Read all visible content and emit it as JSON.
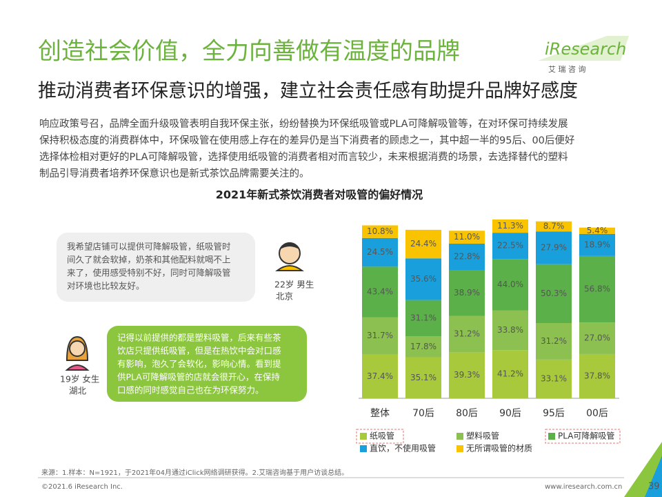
{
  "header": {
    "title": "创造社会价值，全力向善做有温度的品牌",
    "subtitle": "推动消费者环保意识的增强，建立社会责任感有助提升品牌好感度"
  },
  "logo": {
    "name": "iResearch",
    "cn": "艾 瑞 咨 询"
  },
  "body": {
    "lines": [
      "响应政策号召，品牌全面升级吸管表明自我环保主张，纷纷替换为环保纸吸管或PLA可降解吸管等，在对环保可持续发展",
      "保持积极态度的消费群体中，环保吸管在使用感上存在的差异仍是当下消费者的顾虑之一，其中超一半的95后、00后便好",
      "选择体检相对更好的PLA可降解吸管，选择使用纸吸管的消费者相对而言较少，未来根据消费的场景，去选择替代的塑料",
      "制品引导消费者培养环保意识也是新式茶饮品牌需要关注的。"
    ]
  },
  "quotes": [
    {
      "lines": [
        "我希望店铺可以提供可降解吸管，纸吸管时",
        "间久了就会软掉，奶茶和其他配料就喝不上",
        "来了，使用感受特别不好，同时可降解吸管",
        "对环境也比较友好。"
      ],
      "person": "22岁 男生",
      "place": "北京"
    },
    {
      "lines": [
        "记得以前提供的都是塑料吸管，后来有些茶",
        "饮店只提供纸吸管，但是在热饮中会对口感",
        "有影响，泡久了会软化，影响心情。看到提",
        "供PLA可降解吸管的店就会很开心，在保持",
        "口感的同时感觉自己也在为环保努力。"
      ],
      "person": "19岁 女生",
      "place": "湖北"
    }
  ],
  "chart_data": {
    "type": "stacked_bar",
    "title": "2021年新式茶饮消费者对吸管的偏好情况",
    "categories": [
      "整体",
      "70后",
      "80后",
      "90后",
      "95后",
      "00后"
    ],
    "series": [
      {
        "name": "纸吸管",
        "color": "#a8c93c",
        "values": [
          37.4,
          35.1,
          39.3,
          41.2,
          33.1,
          37.8
        ],
        "value_labels": [
          "37.4%",
          "35.1%",
          "39.3%",
          "41.2%",
          "33.1%",
          "37.8%"
        ]
      },
      {
        "name": "塑料吸管",
        "color": "#8cc152",
        "values": [
          31.7,
          17.8,
          31.2,
          33.8,
          31.2,
          27.0
        ],
        "value_labels": [
          "31.7%",
          "17.8%",
          "31.2%",
          "33.8%",
          "31.2%",
          "27.0%"
        ]
      },
      {
        "name": "PLA可降解吸管",
        "color": "#5cb04a",
        "values": [
          43.4,
          31.1,
          38.9,
          44.0,
          50.3,
          56.8
        ],
        "value_labels": [
          "43.4%",
          "31.1%",
          "38.9%",
          "44.0%",
          "50.3%",
          "56.8%"
        ]
      },
      {
        "name": "直饮，不使用吸管",
        "color": "#19a0dc",
        "values": [
          24.5,
          35.6,
          22.8,
          22.5,
          27.9,
          18.9
        ],
        "value_labels": [
          "24.5%",
          "35.6%",
          "22.8%",
          "22.5%",
          "27.9%",
          "18.9%"
        ]
      },
      {
        "name": "无所谓吸管的材质",
        "color": "#f9c300",
        "values": [
          10.8,
          24.4,
          11.0,
          11.3,
          8.7,
          5.4
        ],
        "value_labels": [
          "10.8%",
          "24.4%",
          "11.0%",
          "11.3%",
          "8.7%",
          "5.4%"
        ]
      }
    ]
  },
  "footer": {
    "source": "来源：1.样本：N=1921，于2021年04月通过iClick网络调研获得。2.艾瑞咨询基于用户访谈总结。",
    "copyright": "©2021.6 iResearch Inc.",
    "url": "www.iresearch.com.cn",
    "page": "39"
  }
}
